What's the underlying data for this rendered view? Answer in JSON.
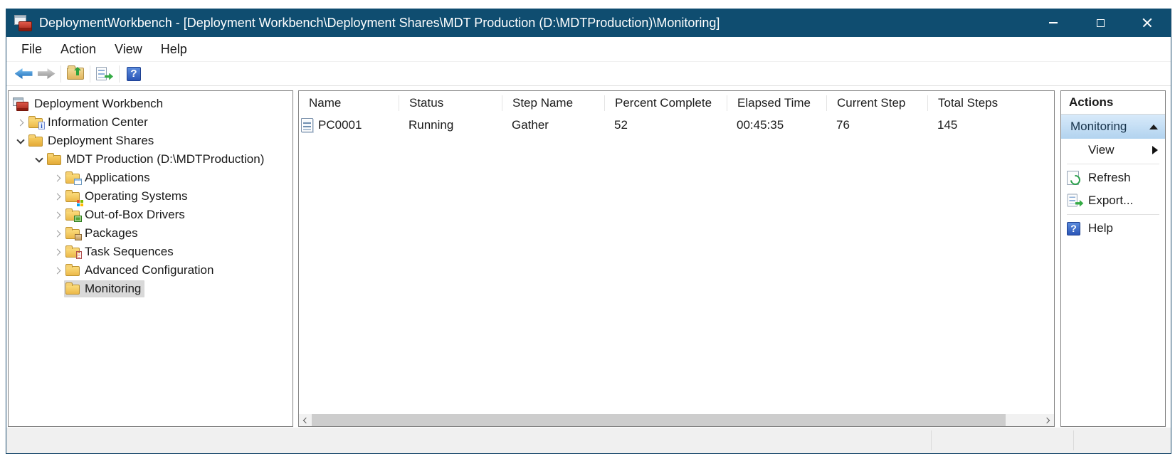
{
  "window": {
    "title": "DeploymentWorkbench - [Deployment Workbench\\Deployment Shares\\MDT Production (D:\\MDTProduction)\\Monitoring]"
  },
  "menu": {
    "items": [
      "File",
      "Action",
      "View",
      "Help"
    ]
  },
  "toolbar": {
    "buttons": [
      "back",
      "forward",
      "up-one-level",
      "export-list",
      "help"
    ],
    "help_glyph": "?"
  },
  "tree": {
    "items": [
      {
        "label": "Deployment Workbench",
        "level": 0,
        "expand": "none",
        "icon": "workbench",
        "selected": false
      },
      {
        "label": "Information Center",
        "level": 1,
        "expand": "collapsed",
        "icon": "folder-info",
        "selected": false
      },
      {
        "label": "Deployment Shares",
        "level": 1,
        "expand": "expanded",
        "icon": "folder-open",
        "selected": false
      },
      {
        "label": "MDT Production (D:\\MDTProduction)",
        "level": 2,
        "expand": "expanded",
        "icon": "folder-open",
        "selected": false
      },
      {
        "label": "Applications",
        "level": 3,
        "expand": "collapsed",
        "icon": "folder-applications",
        "selected": false
      },
      {
        "label": "Operating Systems",
        "level": 3,
        "expand": "collapsed",
        "icon": "folder-os",
        "selected": false
      },
      {
        "label": "Out-of-Box Drivers",
        "level": 3,
        "expand": "collapsed",
        "icon": "folder-drivers",
        "selected": false
      },
      {
        "label": "Packages",
        "level": 3,
        "expand": "collapsed",
        "icon": "folder-packages",
        "selected": false
      },
      {
        "label": "Task Sequences",
        "level": 3,
        "expand": "collapsed",
        "icon": "folder-tasks",
        "selected": false
      },
      {
        "label": "Advanced Configuration",
        "level": 3,
        "expand": "collapsed",
        "icon": "folder-plain",
        "selected": false
      },
      {
        "label": "Monitoring",
        "level": 3,
        "expand": "none",
        "icon": "folder-plain",
        "selected": true
      }
    ]
  },
  "list": {
    "columns": [
      "Name",
      "Status",
      "Step Name",
      "Percent Complete",
      "Elapsed Time",
      "Current Step",
      "Total Steps"
    ],
    "rows": [
      {
        "name": "PC0001",
        "status": "Running",
        "step_name": "Gather",
        "percent_complete": "52",
        "elapsed_time": "00:45:35",
        "current_step": "76",
        "total_steps": "145"
      }
    ]
  },
  "actions": {
    "title": "Actions",
    "group_label": "Monitoring",
    "items": [
      {
        "label": "View",
        "icon": "none",
        "submenu": true
      },
      {
        "label": "Refresh",
        "icon": "refresh"
      },
      {
        "label": "Export...",
        "icon": "export"
      },
      {
        "label": "Help",
        "icon": "help"
      }
    ],
    "help_glyph": "?"
  },
  "icons": {
    "back-icon": "blue left arrow",
    "forward-icon": "gray right arrow",
    "up-one-level-icon": "folder with green up arrow",
    "export-list-icon": "document with green right arrow",
    "help-icon": "blue square question mark",
    "refresh-icon": "document with green circular arrow",
    "view-submenu-icon": "right-pointing triangle",
    "collapse-group-icon": "up-pointing triangle",
    "record-icon": "list report page"
  },
  "colors": {
    "titlebar": "#0f4d70",
    "titlebar_text": "#ffffff",
    "pane_border": "#828282",
    "tree_selection": "#d9d9d9",
    "actions_group_top": "#d8eafa",
    "actions_group_bottom": "#b2d3ef",
    "statusbar": "#f0f0f0",
    "scroll_thumb": "#cdcdcd"
  }
}
